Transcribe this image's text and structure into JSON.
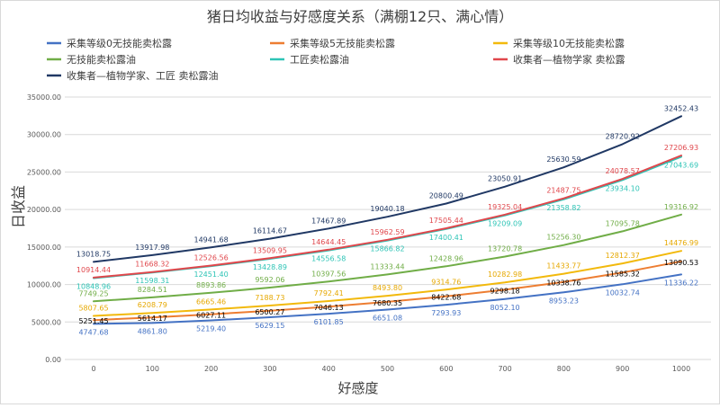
{
  "chart_data": {
    "type": "line",
    "title": "猪日均收益与好感度关系（满棚12只、满心情）",
    "xlabel": "好感度",
    "ylabel": "日收益",
    "x": [
      0,
      100,
      200,
      300,
      400,
      500,
      600,
      700,
      800,
      900,
      1000
    ],
    "ylim": [
      0,
      35000
    ],
    "yticks": [
      "0.00",
      "5000.00",
      "10000.00",
      "15000.00",
      "20000.00",
      "25000.00",
      "30000.00",
      "35000.00"
    ],
    "grid": true,
    "legend_position": "top",
    "series": [
      {
        "name": "采集等级0无技能卖松露",
        "color": "#4472C4",
        "values": [
          4747.68,
          4861.8,
          5219.4,
          5629.15,
          6101.85,
          6651.08,
          7293.93,
          8052.1,
          8953.23,
          10032.74,
          11336.22
        ],
        "labels": [
          "4747.68",
          "4861.80",
          "5219.40",
          "5629.15",
          "6101.85",
          "6651.08",
          "7293.93",
          "8052.10",
          "8953.23",
          "10032.74",
          "11336.22"
        ]
      },
      {
        "name": "采集等级5无技能卖松露",
        "color": "#ED7D31",
        "values": [
          5251.45,
          5614.17,
          6027.11,
          6500.27,
          7046.13,
          7680.35,
          8422.68,
          9298.18,
          10338.76,
          11585.32,
          13090.53
        ],
        "labels": [
          "5251.45",
          "5614.17",
          "6027.11",
          "6500.27",
          "7046.13",
          "7680.35",
          "8422.68",
          "9298.18",
          "10338.76",
          "11585.32",
          "13090.53"
        ]
      },
      {
        "name": "采集等级10无技能卖松露",
        "color": "#F2B90C",
        "values": [
          5807.65,
          6208.79,
          6665.46,
          7188.73,
          7792.41,
          8493.8,
          9314.76,
          10282.98,
          11433.77,
          12812.37,
          14476.99
        ],
        "labels": [
          "5807.65",
          "6208.79",
          "6665.46",
          "7188.73",
          "7792.41",
          "8493.80",
          "9314.76",
          "10282.98",
          "11433.77",
          "12812.37",
          "14476.99"
        ]
      },
      {
        "name": "无技能卖松露油",
        "color": "#70AD47",
        "values": [
          7749.25,
          8284.51,
          8893.86,
          9592.06,
          10397.56,
          11333.44,
          12428.96,
          13720.78,
          15256.3,
          17095.78,
          19316.92
        ],
        "labels": [
          "7749.25",
          "8284.51",
          "8893.86",
          "9592.06",
          "10397.56",
          "11333.44",
          "12428.96",
          "13720.78",
          "15256.30",
          "17095.78",
          "19316.92"
        ]
      },
      {
        "name": "工匠卖松露油",
        "color": "#2EC4B6",
        "values": [
          10848.96,
          11598.31,
          12451.4,
          13428.89,
          14556.58,
          15866.82,
          17400.41,
          19209.09,
          21358.82,
          23934.1,
          27043.69
        ],
        "labels": [
          "10848.96",
          "11598.31",
          "12451.40",
          "13428.89",
          "14556.58",
          "15866.82",
          "17400.41",
          "19209.09",
          "21358.82",
          "23934.10",
          "27043.69"
        ]
      },
      {
        "name": "收集者—植物学家 卖松露",
        "color": "#E0474C",
        "values": [
          10914.44,
          11668.32,
          12526.56,
          13509.95,
          14644.45,
          15962.59,
          17505.44,
          19325.04,
          21487.75,
          24078.57,
          27206.93
        ],
        "labels": [
          "10914.44",
          "11668.32",
          "12526.56",
          "13509.95",
          "14644.45",
          "15962.59",
          "17505.44",
          "19325.04",
          "21487.75",
          "24078.57",
          "27206.93"
        ]
      },
      {
        "name": "收集者—植物学家、工匠 卖松露油",
        "color": "#203864",
        "values": [
          13018.75,
          13917.98,
          14941.68,
          16114.67,
          17467.89,
          19040.18,
          20800.49,
          23050.91,
          25630.59,
          28720.92,
          32452.43
        ],
        "labels": [
          "13018.75",
          "13917.98",
          "14941.68",
          "16114.67",
          "17467.89",
          "19040.18",
          "20800.49",
          "23050.91",
          "25630.59",
          "28720.92",
          "32452.43"
        ]
      }
    ]
  }
}
